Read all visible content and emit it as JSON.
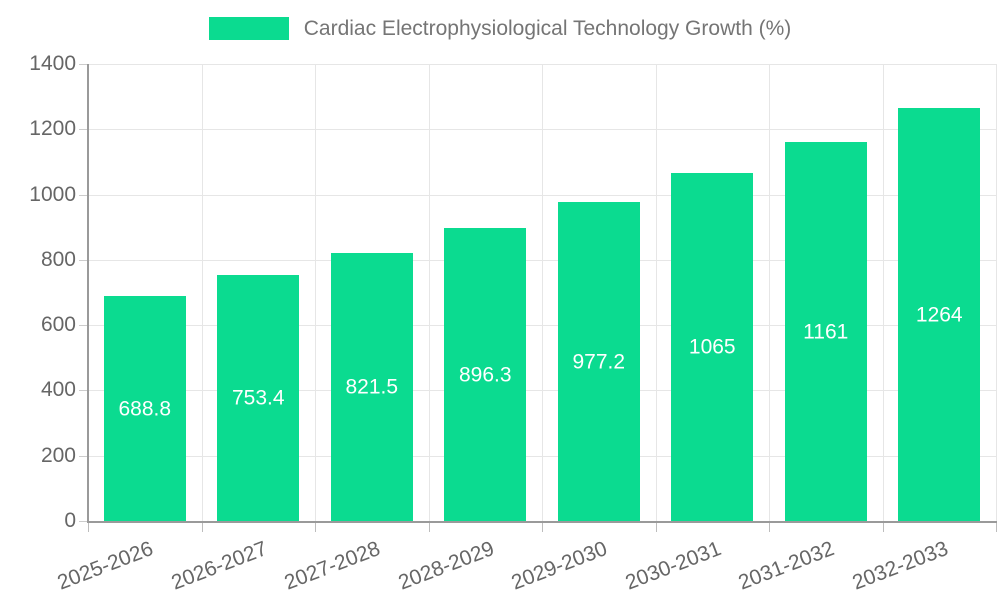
{
  "chart_data": {
    "type": "bar",
    "title": "Cardiac Electrophysiological Technology Growth (%)",
    "legend_position": "top",
    "categories": [
      "2025-2026",
      "2026-2027",
      "2027-2028",
      "2028-2029",
      "2029-2030",
      "2030-2031",
      "2031-2032",
      "2032-2033"
    ],
    "values": [
      688.8,
      753.4,
      821.5,
      896.3,
      977.2,
      1065,
      1161,
      1264
    ],
    "value_labels": [
      "688.8",
      "753.4",
      "821.5",
      "896.3",
      "977.2",
      "1065",
      "1161",
      "1264"
    ],
    "xlabel": "",
    "ylabel": "",
    "ylim": [
      0,
      1400
    ],
    "yticks": [
      0,
      200,
      400,
      600,
      800,
      1000,
      1200,
      1400
    ],
    "grid": true,
    "colors": {
      "bar": "#0bdb90",
      "value_label": "#ffffff",
      "axis_label": "#666666",
      "legend_text": "#757575",
      "gridline": "#e6e6e6",
      "axis_line": "#9a9a9a"
    }
  }
}
